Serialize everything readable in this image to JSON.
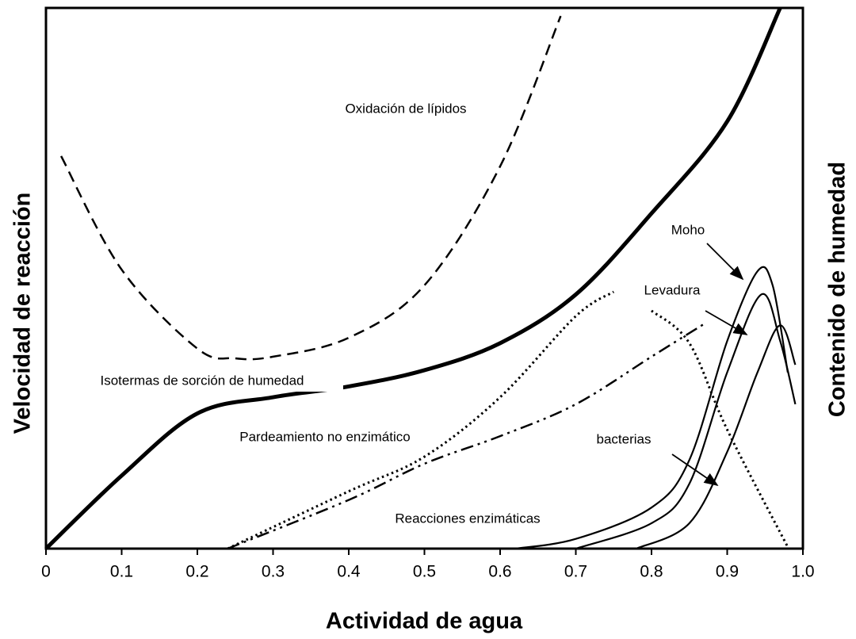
{
  "chart_data": {
    "type": "line",
    "xlabel": "Actividad de agua",
    "ylabel": "Velocidad de reacción",
    "y2label": "Contenido de humedad",
    "xlim": [
      0,
      1
    ],
    "xticks": [
      0,
      0.1,
      0.2,
      0.3,
      0.4,
      0.5,
      0.6,
      0.7,
      0.8,
      0.9,
      {
        "value": 1,
        "label": "1.0"
      }
    ],
    "ylim": [
      0,
      100
    ],
    "series": [
      {
        "name": "Isotermas de sorción de humedad",
        "color": "#000000",
        "style": "thick",
        "x": [
          0,
          0.1,
          0.2,
          0.3,
          0.4,
          0.5,
          0.6,
          0.7,
          0.8,
          0.9,
          0.97
        ],
        "values": [
          0,
          13.5,
          25,
          28,
          30,
          33,
          38,
          47,
          62,
          79,
          100
        ]
      },
      {
        "name": "Oxidación de lípidos",
        "color": "#000000",
        "style": "dashed",
        "x": [
          0.02,
          0.1,
          0.2,
          0.25,
          0.3,
          0.4,
          0.5,
          0.6,
          0.68
        ],
        "values": [
          72.6,
          51.6,
          37,
          35.2,
          35.5,
          39,
          48.7,
          70.7,
          98.5
        ]
      },
      {
        "name": "Pardeamiento no enzimático",
        "color": "#000000",
        "style": "dotted",
        "x": [
          0.24,
          0.4,
          0.5,
          0.6,
          0.7,
          0.75,
          0.77,
          0.8,
          0.85,
          0.9,
          0.98
        ],
        "values": [
          0,
          10.6,
          17,
          28,
          43,
          47.5,
          null,
          44,
          38,
          22,
          0.3
        ]
      },
      {
        "name": "Reacciones enzimáticas",
        "color": "#000000",
        "style": "dash-dot",
        "x": [
          0.24,
          0.4,
          0.5,
          0.6,
          0.7,
          0.8,
          0.87
        ],
        "values": [
          0,
          9,
          15.7,
          20.8,
          26.7,
          35.5,
          41.6
        ]
      },
      {
        "name": "Moho",
        "color": "#000000",
        "style": "solid",
        "x": [
          0.62,
          0.7,
          0.8,
          0.85,
          0.9,
          0.94,
          0.96,
          0.98
        ],
        "values": [
          0,
          1.8,
          7.6,
          16.4,
          38.4,
          51.3,
          48.7,
          32.6
        ]
      },
      {
        "name": "Levadura",
        "color": "#000000",
        "style": "solid",
        "x": [
          0.7,
          0.8,
          0.85,
          0.9,
          0.945,
          0.97,
          0.99
        ],
        "values": [
          0,
          4.7,
          12,
          32.6,
          47,
          38.4,
          26.7
        ]
      },
      {
        "name": "bacterias",
        "color": "#000000",
        "style": "solid",
        "x": [
          0.78,
          0.85,
          0.9,
          0.94,
          0.97,
          0.99
        ],
        "values": [
          0,
          4.7,
          17.9,
          32.6,
          41.3,
          34
        ]
      }
    ]
  }
}
